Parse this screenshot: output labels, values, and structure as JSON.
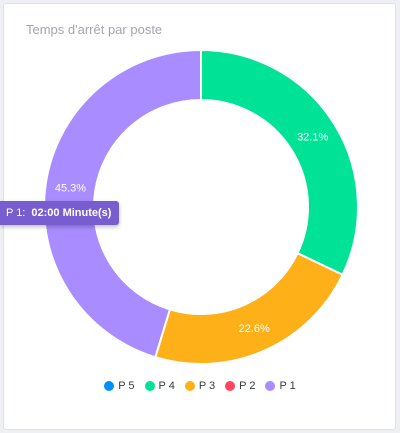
{
  "chart_data": {
    "type": "pie",
    "title": "Temps d'arrêt par poste",
    "donut": true,
    "slices": [
      {
        "name": "P 5",
        "value": 0.0,
        "color": "#008ffb"
      },
      {
        "name": "P 4",
        "value": 32.1,
        "color": "#00e396"
      },
      {
        "name": "P 3",
        "value": 22.6,
        "color": "#feb019"
      },
      {
        "name": "P 2",
        "value": 0.0,
        "color": "#ff4560"
      },
      {
        "name": "P 1",
        "value": 45.3,
        "color": "#a98cff"
      }
    ],
    "data_labels": [
      "32.1%",
      "22.6%",
      "45.3%"
    ],
    "legend": [
      "P 5",
      "P 4",
      "P 3",
      "P 2",
      "P 1"
    ],
    "legend_position": "bottom"
  },
  "tooltip": {
    "series_label": "P 1:",
    "value_text": "02:00 Minute(s)"
  }
}
